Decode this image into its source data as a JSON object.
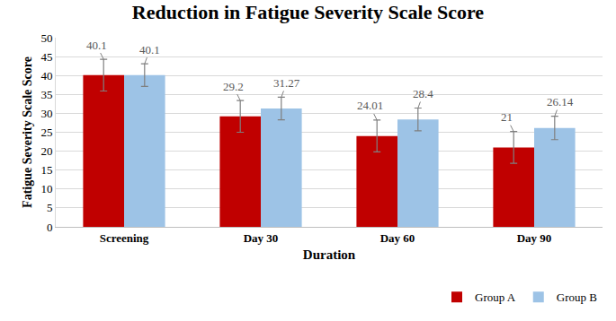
{
  "chart_data": {
    "type": "bar",
    "title": "Reduction in Fatigue Severity Scale Score",
    "x_label": "Duration",
    "y_label": "Fatigue Severity Scale Score",
    "categories": [
      "Screening",
      "Day 30",
      "Day 60",
      "Day 90"
    ],
    "series": [
      {
        "name": "Group A",
        "color": "#c00000",
        "values": [
          40.1,
          29.2,
          24.01,
          21
        ],
        "error": [
          4.2,
          4.2,
          4.2,
          4.2
        ]
      },
      {
        "name": "Group B",
        "color": "#9dc3e6",
        "values": [
          40.1,
          31.27,
          28.4,
          26.14
        ],
        "error": [
          3,
          3,
          3,
          3.1
        ]
      }
    ],
    "ylim": [
      0,
      50
    ],
    "yticks": [
      0,
      5,
      10,
      15,
      20,
      25,
      30,
      35,
      40,
      45,
      50
    ],
    "grid": true,
    "legend": "bottom right",
    "data_labels": true
  }
}
